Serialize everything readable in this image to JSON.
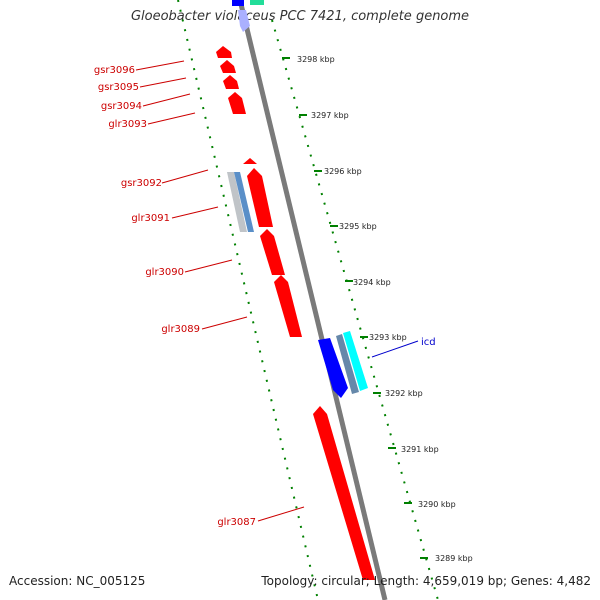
{
  "header": {
    "title": "Gloeobacter violaceus PCC 7421, complete genome"
  },
  "footer": {
    "accession": "Accession: NC_005125",
    "topology": "Topology: circular; Length: 4,659,019 bp; Genes: 4,482"
  },
  "colors": {
    "reverse_gene": "#ff0000",
    "forward_gene": "#0000ff",
    "forward_gene_cyan": "#00ffff",
    "rna_gene": "#b0b4b8",
    "backbone": "#7a7a7a",
    "tick": "#008000",
    "reverse_label": "#cc0000",
    "forward_label": "#0000cc"
  },
  "ruler_ticks": [
    "3298 kbp",
    "3297 kbp",
    "3296 kbp",
    "3295 kbp",
    "3294 kbp",
    "3293 kbp",
    "3292 kbp",
    "3291 kbp",
    "3290 kbp",
    "3289 kbp"
  ],
  "reverse_gene_labels": [
    "gsr3096",
    "gsr3095",
    "gsr3094",
    "glr3093",
    "gsr3092",
    "glr3091",
    "glr3090",
    "glr3089",
    "glr3087"
  ],
  "forward_gene_labels": [
    "icd"
  ]
}
